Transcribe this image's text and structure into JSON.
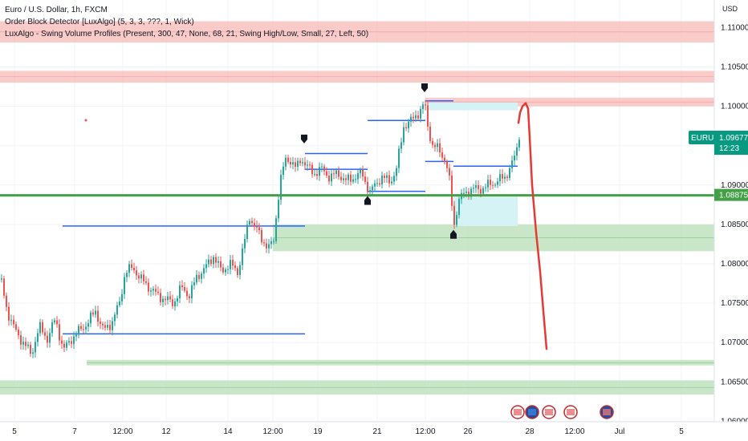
{
  "legend": {
    "symbol_line": "Euro / U.S. Dollar, 1h, FXCM",
    "indicator1": "Order Block Detector [LuxAlgo] (5, 3, 3, ???, 1, Wick)",
    "indicator2": "LuxAlgo - Swing Volume Profiles (Present, 300, 47, None, 68, 21, Swing High/Low, Small, 27, Left, 50)"
  },
  "colors": {
    "up": "#26a69a",
    "down": "#ef5350",
    "bearish_block": "#f7b9b7",
    "bullish_block": "#b7dfb5",
    "volume_profile": "#d5f2f5",
    "level_line": "#2962ff",
    "support_line": "#43a047",
    "drawing": "#e53935",
    "price_tag": "#089981",
    "support_tag": "#43a047"
  },
  "chart_data": {
    "type": "candlestick",
    "symbol": "EURUSD",
    "ylim": [
      1.0575,
      1.1135
    ],
    "y_ticks": [
      "1.11000",
      "1.10500",
      "1.10000",
      "1.09500",
      "1.09000",
      "1.08500",
      "1.08000",
      "1.07500",
      "1.07000",
      "1.06500",
      "1.06000"
    ],
    "x_ticks": [
      "5",
      "7",
      "12:00",
      "12",
      "14",
      "12:00",
      "19",
      "21",
      "12:00",
      "26",
      "28",
      "12:00",
      "Jul",
      "5"
    ],
    "currency": "USD",
    "price_path": [
      [
        0,
        1.078
      ],
      [
        8,
        1.074
      ],
      [
        18,
        1.0715
      ],
      [
        28,
        1.07
      ],
      [
        38,
        1.0685
      ],
      [
        48,
        1.072
      ],
      [
        58,
        1.0705
      ],
      [
        68,
        1.073
      ],
      [
        78,
        1.069
      ],
      [
        88,
        1.0705
      ],
      [
        98,
        1.0715
      ],
      [
        108,
        1.0725
      ],
      [
        118,
        1.074
      ],
      [
        128,
        1.0715
      ],
      [
        138,
        1.0725
      ],
      [
        148,
        1.075
      ],
      [
        155,
        1.079
      ],
      [
        165,
        1.0795
      ],
      [
        175,
        1.078
      ],
      [
        185,
        1.077
      ],
      [
        195,
        1.076
      ],
      [
        205,
        1.0755
      ],
      [
        215,
        1.075
      ],
      [
        225,
        1.077
      ],
      [
        235,
        1.076
      ],
      [
        245,
        1.0785
      ],
      [
        255,
        1.0795
      ],
      [
        265,
        1.081
      ],
      [
        275,
        1.079
      ],
      [
        285,
        1.08
      ],
      [
        295,
        1.079
      ],
      [
        302,
        1.082
      ],
      [
        310,
        1.086
      ],
      [
        318,
        1.0845
      ],
      [
        326,
        1.083
      ],
      [
        334,
        1.082
      ],
      [
        340,
        1.083
      ],
      [
        345,
        1.088
      ],
      [
        350,
        1.0915
      ],
      [
        356,
        1.0935
      ],
      [
        362,
        1.093
      ],
      [
        368,
        1.092
      ],
      [
        374,
        1.0935
      ],
      [
        380,
        1.0925
      ],
      [
        390,
        1.0915
      ],
      [
        400,
        1.092
      ],
      [
        410,
        1.091
      ],
      [
        420,
        1.0915
      ],
      [
        430,
        1.0905
      ],
      [
        440,
        1.091
      ],
      [
        450,
        1.0915
      ],
      [
        456,
        1.09
      ],
      [
        460,
        1.089
      ],
      [
        466,
        1.09
      ],
      [
        474,
        1.091
      ],
      [
        484,
        1.0905
      ],
      [
        492,
        1.0915
      ],
      [
        497,
        1.0945
      ],
      [
        502,
        1.0975
      ],
      [
        510,
        1.098
      ],
      [
        518,
        1.099
      ],
      [
        524,
        1.0995
      ],
      [
        528,
        1.1005
      ],
      [
        532,
        1.0975
      ],
      [
        538,
        1.095
      ],
      [
        546,
        1.0945
      ],
      [
        552,
        1.0935
      ],
      [
        558,
        1.0915
      ],
      [
        562,
        1.0875
      ],
      [
        565,
        1.085
      ],
      [
        570,
        1.088
      ],
      [
        578,
        1.089
      ],
      [
        588,
        1.0895
      ],
      [
        598,
        1.0895
      ],
      [
        608,
        1.09
      ],
      [
        618,
        1.0905
      ],
      [
        628,
        1.091
      ],
      [
        636,
        1.0925
      ],
      [
        642,
        1.094
      ],
      [
        646,
        1.0965
      ]
    ],
    "bearish_order_blocks": [
      {
        "top": 1.1108,
        "bottom": 1.1081
      },
      {
        "top": 1.1045,
        "bottom": 1.103
      },
      {
        "top": 1.1011,
        "bottom": 1.1
      }
    ],
    "bullish_order_blocks": [
      {
        "top": 1.085,
        "bottom": 1.0816
      },
      {
        "top": 1.0678,
        "bottom": 1.0671
      },
      {
        "top": 1.0652,
        "bottom": 1.0634
      }
    ],
    "support_level": 1.0887,
    "swing_levels": [
      {
        "y": 1.0848
      },
      {
        "y": 1.0711
      },
      {
        "y": 1.094
      },
      {
        "y": 1.092
      },
      {
        "y": 1.0892
      },
      {
        "y": 1.0982
      },
      {
        "y": 1.1007
      },
      {
        "y": 1.093
      },
      {
        "y": 1.0924
      }
    ],
    "current_price": {
      "label": "EURUSD",
      "value": "1.09677",
      "countdown": "12:23"
    },
    "support_tag": "1.08875",
    "drawing_path": [
      [
        1.0979,
        0
      ],
      [
        1.0992,
        2
      ],
      [
        1.1,
        5
      ],
      [
        1.1004,
        9
      ],
      [
        1.0997,
        12
      ],
      [
        1.096,
        14
      ],
      [
        1.09,
        17
      ],
      [
        1.084,
        22
      ],
      [
        1.079,
        27
      ],
      [
        1.074,
        31
      ],
      [
        1.0692,
        35
      ]
    ]
  }
}
